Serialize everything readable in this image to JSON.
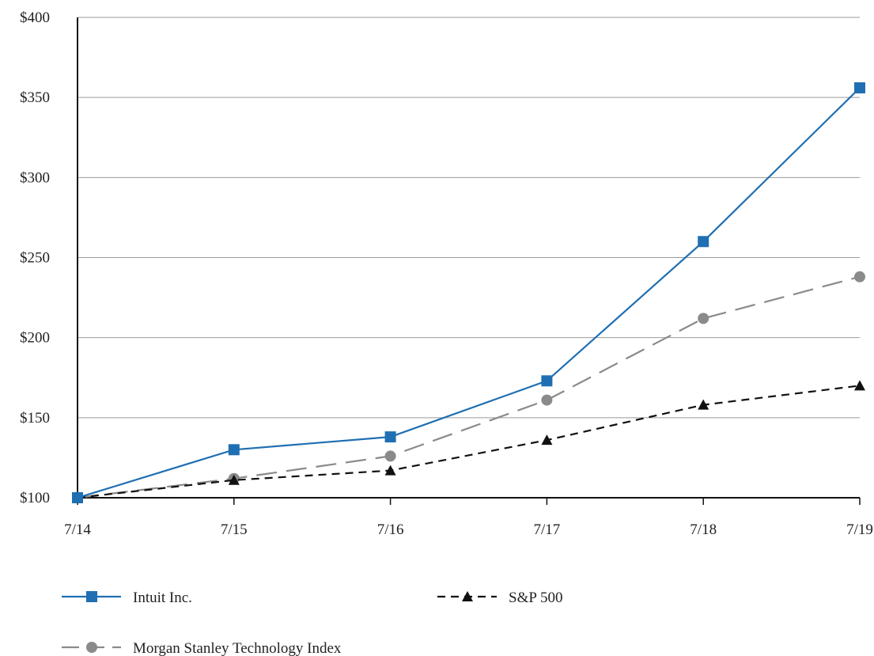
{
  "chart_data": {
    "type": "line",
    "title": "",
    "xlabel": "",
    "ylabel": "",
    "categories": [
      "7/14",
      "7/15",
      "7/16",
      "7/17",
      "7/18",
      "7/19"
    ],
    "ylim": [
      100,
      400
    ],
    "yticks": [
      100,
      150,
      200,
      250,
      300,
      350,
      400
    ],
    "ytick_labels": [
      "$100",
      "$150",
      "$200",
      "$250",
      "$300",
      "$350",
      "$400"
    ],
    "grid": "horizontal",
    "legend_position": "bottom",
    "series": [
      {
        "name": "Intuit Inc.",
        "values": [
          100,
          130,
          138,
          173,
          260,
          356
        ],
        "color": "#1f6fb2",
        "marker": "square",
        "dash": "solid"
      },
      {
        "name": "S&P 500",
        "values": [
          100,
          111,
          117,
          136,
          158,
          170
        ],
        "color": "#111111",
        "marker": "triangle",
        "dash": "short-dash"
      },
      {
        "name": "Morgan Stanley Technology Index",
        "values": [
          100,
          112,
          126,
          161,
          212,
          238
        ],
        "color": "#8a8a8a",
        "marker": "circle",
        "dash": "long-dash"
      }
    ]
  }
}
